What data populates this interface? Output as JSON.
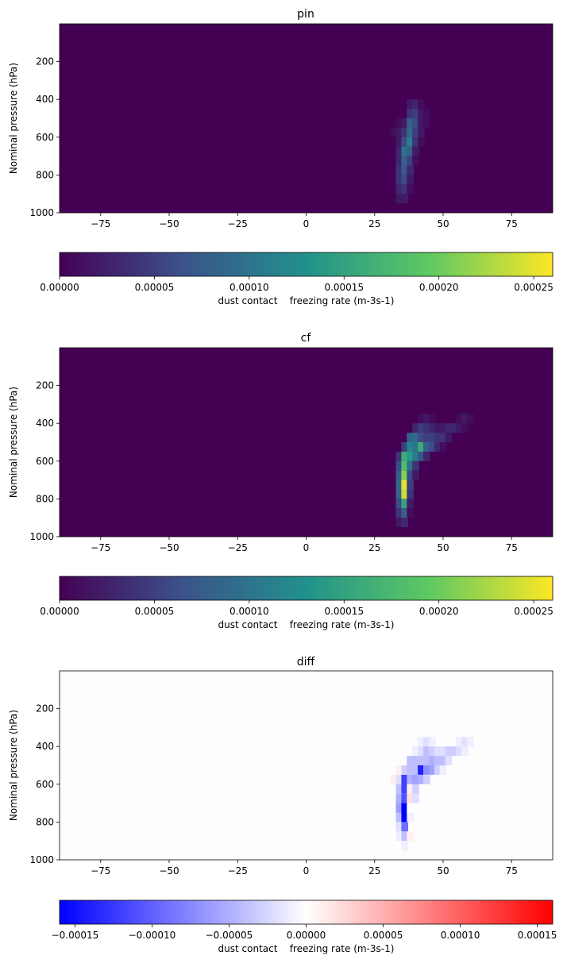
{
  "chart_data": [
    {
      "type": "heatmap",
      "title": "pin",
      "xlabel": "",
      "ylabel": "Nominal pressure (hPa)",
      "xlim": [
        -90,
        90
      ],
      "ylim": [
        1000,
        0
      ],
      "xticks": [
        "-75",
        "-50",
        "-25",
        "0",
        "25",
        "50",
        "75"
      ],
      "yticks": [
        "200",
        "400",
        "600",
        "800",
        "1000"
      ],
      "colormap": "viridis",
      "colorbar": {
        "label": "dust contact    freezing rate (m-3s-1)",
        "range": [
          0,
          0.00026
        ],
        "ticks": [
          "0.00000",
          "0.00005",
          "0.00010",
          "0.00015",
          "0.00020",
          "0.00025"
        ]
      },
      "cells": [
        [
          38,
          425,
          2e-05
        ],
        [
          40,
          425,
          3e-05
        ],
        [
          42,
          425,
          1e-05
        ],
        [
          38,
          475,
          4e-05
        ],
        [
          40,
          475,
          5e-05
        ],
        [
          42,
          475,
          2e-05
        ],
        [
          44,
          475,
          1e-05
        ],
        [
          34,
          525,
          1e-05
        ],
        [
          36,
          525,
          2e-05
        ],
        [
          38,
          525,
          8e-05
        ],
        [
          40,
          525,
          6e-05
        ],
        [
          42,
          525,
          2e-05
        ],
        [
          44,
          525,
          1e-05
        ],
        [
          32,
          575,
          1e-05
        ],
        [
          34,
          575,
          2e-05
        ],
        [
          36,
          575,
          4e-05
        ],
        [
          38,
          575,
          9e-05
        ],
        [
          40,
          575,
          5e-05
        ],
        [
          42,
          575,
          2e-05
        ],
        [
          34,
          625,
          2e-05
        ],
        [
          36,
          625,
          6e-05
        ],
        [
          38,
          625,
          0.00011
        ],
        [
          40,
          625,
          4e-05
        ],
        [
          42,
          625,
          1e-05
        ],
        [
          34,
          675,
          3e-05
        ],
        [
          36,
          675,
          0.0001
        ],
        [
          38,
          675,
          8e-05
        ],
        [
          40,
          675,
          2e-05
        ],
        [
          34,
          725,
          3e-05
        ],
        [
          36,
          725,
          8e-05
        ],
        [
          38,
          725,
          5e-05
        ],
        [
          40,
          725,
          1e-05
        ],
        [
          34,
          775,
          4e-05
        ],
        [
          36,
          775,
          7e-05
        ],
        [
          38,
          775,
          3e-05
        ],
        [
          34,
          825,
          4e-05
        ],
        [
          36,
          825,
          6e-05
        ],
        [
          38,
          825,
          2e-05
        ],
        [
          34,
          875,
          3e-05
        ],
        [
          36,
          875,
          4e-05
        ],
        [
          38,
          875,
          1e-05
        ],
        [
          34,
          925,
          2e-05
        ],
        [
          36,
          925,
          2e-05
        ]
      ]
    },
    {
      "type": "heatmap",
      "title": "cf",
      "xlabel": "",
      "ylabel": "Nominal pressure (hPa)",
      "xlim": [
        -90,
        90
      ],
      "ylim": [
        1000,
        0
      ],
      "xticks": [
        "-75",
        "-50",
        "-25",
        "0",
        "25",
        "50",
        "75"
      ],
      "yticks": [
        "200",
        "400",
        "600",
        "800",
        "1000"
      ],
      "colormap": "viridis",
      "colorbar": {
        "label": "dust contact    freezing rate (m-3s-1)",
        "range": [
          0,
          0.00026
        ],
        "ticks": [
          "0.00000",
          "0.00005",
          "0.00010",
          "0.00015",
          "0.00020",
          "0.00025"
        ]
      },
      "cells": [
        [
          42,
          375,
          1e-05
        ],
        [
          44,
          375,
          2e-05
        ],
        [
          46,
          375,
          1e-05
        ],
        [
          56,
          375,
          1e-05
        ],
        [
          58,
          375,
          2e-05
        ],
        [
          60,
          375,
          1e-05
        ],
        [
          40,
          425,
          3e-05
        ],
        [
          42,
          425,
          5e-05
        ],
        [
          44,
          425,
          4e-05
        ],
        [
          46,
          425,
          3e-05
        ],
        [
          48,
          425,
          2e-05
        ],
        [
          50,
          425,
          2e-05
        ],
        [
          52,
          425,
          3e-05
        ],
        [
          54,
          425,
          3e-05
        ],
        [
          56,
          425,
          2e-05
        ],
        [
          58,
          425,
          1e-05
        ],
        [
          38,
          475,
          8e-05
        ],
        [
          40,
          475,
          9e-05
        ],
        [
          42,
          475,
          6e-05
        ],
        [
          44,
          475,
          5e-05
        ],
        [
          46,
          475,
          5e-05
        ],
        [
          48,
          475,
          4e-05
        ],
        [
          50,
          475,
          4e-05
        ],
        [
          52,
          475,
          2e-05
        ],
        [
          36,
          525,
          5e-05
        ],
        [
          38,
          525,
          0.00012
        ],
        [
          40,
          525,
          0.0001
        ],
        [
          42,
          525,
          0.00016
        ],
        [
          44,
          525,
          8e-05
        ],
        [
          46,
          525,
          6e-05
        ],
        [
          48,
          525,
          3e-05
        ],
        [
          50,
          525,
          1e-05
        ],
        [
          34,
          575,
          4e-05
        ],
        [
          36,
          575,
          0.00016
        ],
        [
          38,
          575,
          0.00014
        ],
        [
          40,
          575,
          0.00011
        ],
        [
          42,
          575,
          7e-05
        ],
        [
          44,
          575,
          3e-05
        ],
        [
          34,
          625,
          6e-05
        ],
        [
          36,
          625,
          0.00018
        ],
        [
          38,
          625,
          0.0001
        ],
        [
          40,
          625,
          4e-05
        ],
        [
          34,
          675,
          8e-05
        ],
        [
          36,
          675,
          0.00021
        ],
        [
          38,
          675,
          6e-05
        ],
        [
          40,
          675,
          2e-05
        ],
        [
          34,
          725,
          9e-05
        ],
        [
          36,
          725,
          0.00025
        ],
        [
          38,
          725,
          5e-05
        ],
        [
          34,
          775,
          8e-05
        ],
        [
          36,
          775,
          0.00024
        ],
        [
          38,
          775,
          4e-05
        ],
        [
          34,
          825,
          6e-05
        ],
        [
          36,
          825,
          0.00015
        ],
        [
          38,
          825,
          2e-05
        ],
        [
          34,
          875,
          4e-05
        ],
        [
          36,
          875,
          8e-05
        ],
        [
          38,
          875,
          1e-05
        ],
        [
          34,
          925,
          2e-05
        ],
        [
          36,
          925,
          3e-05
        ]
      ]
    },
    {
      "type": "heatmap",
      "title": "diff",
      "xlabel": "",
      "ylabel": "Nominal pressure (hPa)",
      "xlim": [
        -90,
        90
      ],
      "ylim": [
        1000,
        0
      ],
      "xticks": [
        "-75",
        "-50",
        "-25",
        "0",
        "25",
        "50",
        "75"
      ],
      "yticks": [
        "200",
        "400",
        "600",
        "800",
        "1000"
      ],
      "colormap": "bwr",
      "colorbar": {
        "label": "dust contact    freezing rate (m-3s-1)",
        "range": [
          -0.00016,
          0.00016
        ],
        "ticks": [
          "−0.00015",
          "−0.00010",
          "−0.00005",
          "0.00000",
          "0.00005",
          "0.00010",
          "0.00015"
        ]
      },
      "cells": [
        [
          42,
          375,
          -1e-05
        ],
        [
          44,
          375,
          -2e-05
        ],
        [
          46,
          375,
          -1e-05
        ],
        [
          56,
          375,
          -1e-05
        ],
        [
          58,
          375,
          -2e-05
        ],
        [
          60,
          375,
          -1e-05
        ],
        [
          40,
          425,
          -1e-05
        ],
        [
          42,
          425,
          -2e-05
        ],
        [
          44,
          425,
          -4e-05
        ],
        [
          46,
          425,
          -3e-05
        ],
        [
          48,
          425,
          -2e-05
        ],
        [
          50,
          425,
          -2e-05
        ],
        [
          52,
          425,
          -3e-05
        ],
        [
          54,
          425,
          -3e-05
        ],
        [
          56,
          425,
          -2e-05
        ],
        [
          58,
          425,
          -1e-05
        ],
        [
          38,
          475,
          -4e-05
        ],
        [
          40,
          475,
          -4e-05
        ],
        [
          42,
          475,
          -4e-05
        ],
        [
          44,
          475,
          -4e-05
        ],
        [
          46,
          475,
          -5e-05
        ],
        [
          48,
          475,
          -4e-05
        ],
        [
          50,
          475,
          -4e-05
        ],
        [
          52,
          475,
          -2e-05
        ],
        [
          34,
          525,
          1e-05
        ],
        [
          36,
          525,
          -3e-05
        ],
        [
          38,
          525,
          -4e-05
        ],
        [
          40,
          525,
          -4e-05
        ],
        [
          42,
          525,
          -0.00014
        ],
        [
          44,
          525,
          -7e-05
        ],
        [
          46,
          525,
          -6e-05
        ],
        [
          48,
          525,
          -3e-05
        ],
        [
          50,
          525,
          -1e-05
        ],
        [
          32,
          575,
          1e-05
        ],
        [
          34,
          575,
          -2e-05
        ],
        [
          36,
          575,
          -0.00012
        ],
        [
          38,
          575,
          -5e-05
        ],
        [
          40,
          575,
          -6e-05
        ],
        [
          42,
          575,
          -5e-05
        ],
        [
          44,
          575,
          -3e-05
        ],
        [
          34,
          625,
          -4e-05
        ],
        [
          36,
          625,
          -0.00012
        ],
        [
          38,
          625,
          1e-05
        ],
        [
          40,
          625,
          -3e-05
        ],
        [
          34,
          675,
          -5e-05
        ],
        [
          36,
          675,
          -0.00011
        ],
        [
          38,
          675,
          2e-05
        ],
        [
          40,
          675,
          -2e-05
        ],
        [
          34,
          725,
          -6e-05
        ],
        [
          36,
          725,
          -0.00017
        ],
        [
          38,
          725,
          0.0
        ],
        [
          34,
          775,
          -4e-05
        ],
        [
          36,
          775,
          -0.00017
        ],
        [
          38,
          775,
          -1e-05
        ],
        [
          34,
          825,
          -2e-05
        ],
        [
          36,
          825,
          -9e-05
        ],
        [
          34,
          875,
          -1e-05
        ],
        [
          36,
          875,
          -4e-05
        ],
        [
          38,
          875,
          1e-05
        ],
        [
          34,
          925,
          0.0
        ],
        [
          36,
          925,
          -1e-05
        ]
      ]
    }
  ]
}
